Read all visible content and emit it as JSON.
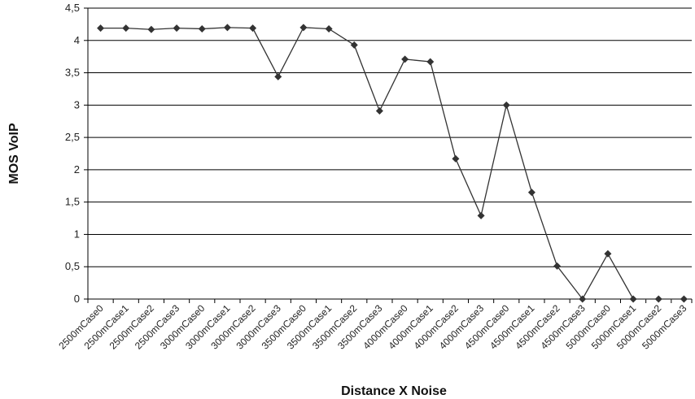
{
  "chart_data": {
    "type": "line",
    "title": "",
    "xlabel": "Distance X Noise",
    "ylabel": "MOS VoIP",
    "ylim": [
      0,
      4.5
    ],
    "y_ticks": [
      "0",
      "0,5",
      "1",
      "1,5",
      "2",
      "2,5",
      "3",
      "3,5",
      "4",
      "4,5"
    ],
    "grid": "horizontal",
    "legend": "none",
    "marker": "diamond",
    "line_color": "#333333",
    "categories": [
      "2500mCase0",
      "2500mCase1",
      "2500mCase2",
      "2500mCase3",
      "3000mCase0",
      "3000mCase1",
      "3000mCase2",
      "3000mCase3",
      "3500mCase0",
      "3500mCase1",
      "3500mCase2",
      "3500mCase3",
      "4000mCase0",
      "4000mCase1",
      "4000mCase2",
      "4000mCase3",
      "4500mCase0",
      "4500mCase1",
      "4500mCase2",
      "4500mCase3",
      "5000mCase0",
      "5000mCase1",
      "5000mCase2",
      "5000mCase3"
    ],
    "series": [
      {
        "values": [
          4.19,
          4.19,
          4.17,
          4.19,
          4.18,
          4.2,
          4.19,
          3.44,
          4.2,
          4.18,
          3.93,
          2.91,
          3.71,
          3.67,
          2.17,
          1.29,
          3.0,
          1.65,
          0.51,
          0.0,
          0.7,
          0.0,
          0.0,
          0.0
        ]
      }
    ]
  }
}
